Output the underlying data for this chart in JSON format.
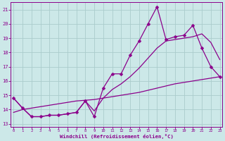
{
  "x_values": [
    0,
    1,
    2,
    3,
    4,
    5,
    6,
    7,
    8,
    9,
    10,
    11,
    12,
    13,
    14,
    15,
    16,
    17,
    18,
    19,
    20,
    21,
    22,
    23
  ],
  "line_main_y": [
    14.8,
    14.1,
    13.5,
    13.5,
    13.6,
    13.6,
    13.7,
    13.8,
    14.6,
    13.5,
    15.5,
    16.5,
    16.5,
    17.8,
    18.8,
    20.0,
    21.2,
    18.9,
    19.1,
    19.2,
    19.9,
    18.3,
    17.0,
    16.3
  ],
  "line_smooth_y": [
    14.8,
    14.1,
    13.5,
    13.5,
    13.6,
    13.6,
    13.7,
    13.8,
    14.6,
    13.9,
    14.8,
    15.4,
    15.8,
    16.3,
    16.9,
    17.6,
    18.3,
    18.8,
    18.9,
    19.0,
    19.1,
    19.3,
    18.7,
    17.5
  ],
  "line_trend_y": [
    13.8,
    14.0,
    14.1,
    14.2,
    14.3,
    14.4,
    14.5,
    14.6,
    14.65,
    14.7,
    14.8,
    14.9,
    15.0,
    15.1,
    15.2,
    15.35,
    15.5,
    15.65,
    15.8,
    15.9,
    16.0,
    16.1,
    16.2,
    16.3
  ],
  "background_color": "#cce8e8",
  "grid_color": "#aacccc",
  "line_color": "#8B008B",
  "xlim": [
    -0.3,
    23.3
  ],
  "ylim": [
    12.8,
    21.5
  ],
  "yticks": [
    13,
    14,
    15,
    16,
    17,
    18,
    19,
    20,
    21
  ],
  "xticks": [
    0,
    1,
    2,
    3,
    4,
    5,
    6,
    7,
    8,
    9,
    10,
    11,
    12,
    13,
    14,
    15,
    16,
    17,
    18,
    19,
    20,
    21,
    22,
    23
  ],
  "xlabel": "Windchill (Refroidissement éolien,°C)",
  "marker_size": 2.5,
  "line_width": 0.9
}
